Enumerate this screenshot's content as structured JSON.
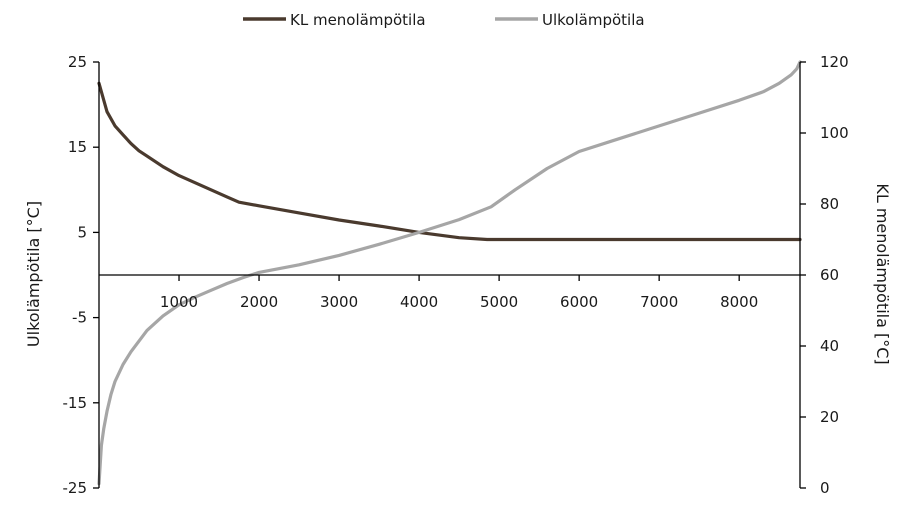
{
  "chart_data": {
    "type": "line",
    "xlim": [
      0,
      8760
    ],
    "x_ticks": [
      1000,
      2000,
      3000,
      4000,
      5000,
      6000,
      7000,
      8000
    ],
    "y_left": {
      "label": "Ulkolämpötila [°C]",
      "lim": [
        -25,
        25
      ],
      "ticks": [
        25,
        15,
        5,
        -5,
        -15,
        -25
      ]
    },
    "y_right": {
      "label": "KL menolämpötila [°C]",
      "lim": [
        0,
        120
      ],
      "ticks": [
        120,
        100,
        80,
        60,
        40,
        20,
        0
      ]
    },
    "legend_position": "top-center",
    "series": [
      {
        "name": "KL menolämpötila",
        "axis": "right",
        "color": "#4a3a2e",
        "x": [
          0,
          50,
          100,
          200,
          300,
          400,
          500,
          600,
          800,
          1000,
          1200,
          1400,
          1600,
          1750,
          2000,
          2500,
          3000,
          3500,
          4000,
          4500,
          4850,
          5000,
          6000,
          7000,
          8000,
          8760
        ],
        "y": [
          114,
          110,
          106,
          102,
          99.5,
          97,
          95,
          93.5,
          90.5,
          88,
          86,
          84,
          82,
          80.5,
          79.5,
          77.5,
          75.5,
          73.8,
          72,
          70.5,
          70,
          70,
          70,
          70,
          70,
          70
        ]
      },
      {
        "name": "Ulkolämpötila",
        "axis": "left",
        "color": "#a6a6a6",
        "x": [
          0,
          30,
          60,
          100,
          150,
          200,
          300,
          400,
          600,
          800,
          1000,
          1200,
          1400,
          1600,
          1800,
          2000,
          2500,
          3000,
          3500,
          4000,
          4500,
          4900,
          5200,
          5600,
          6000,
          6500,
          7000,
          7500,
          8000,
          8300,
          8500,
          8650,
          8720,
          8760
        ],
        "y": [
          -24.5,
          -20,
          -18,
          -16,
          -14,
          -12.5,
          -10.5,
          -9,
          -6.5,
          -4.8,
          -3.5,
          -2.6,
          -1.8,
          -1,
          -0.3,
          0.3,
          1.2,
          2.3,
          3.6,
          5,
          6.5,
          8,
          10,
          12.5,
          14.5,
          16,
          17.5,
          19,
          20.5,
          21.5,
          22.5,
          23.5,
          24.2,
          25
        ]
      }
    ]
  }
}
